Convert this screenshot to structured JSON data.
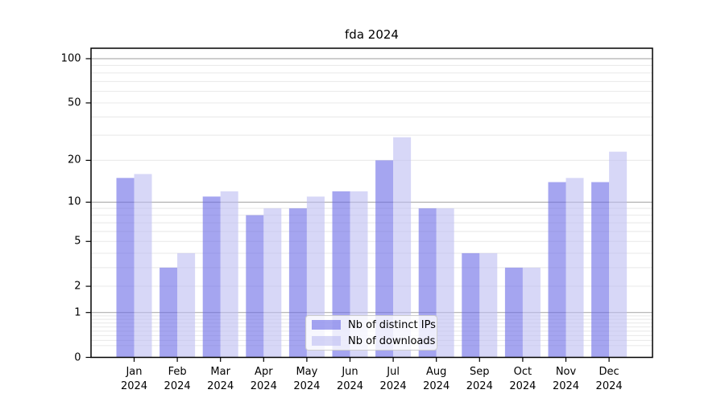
{
  "title": "fda 2024",
  "chart_data": {
    "type": "bar",
    "title": "fda 2024",
    "categories": [
      "Jan 2024",
      "Feb 2024",
      "Mar 2024",
      "Apr 2024",
      "May 2024",
      "Jun 2024",
      "Jul 2024",
      "Aug 2024",
      "Sep 2024",
      "Oct 2024",
      "Nov 2024",
      "Dec 2024"
    ],
    "series": [
      {
        "name": "Nb of distinct IPs",
        "color": "#6969e6",
        "values": [
          15,
          3,
          11,
          8,
          9,
          12,
          20,
          9,
          4,
          3,
          14,
          14
        ]
      },
      {
        "name": "Nb of downloads",
        "color": "#bcbcf2",
        "values": [
          16,
          4,
          12,
          9,
          11,
          12,
          29,
          9,
          4,
          3,
          15,
          23
        ]
      }
    ],
    "yscale": "log1p",
    "y_ticks": [
      100,
      50,
      20,
      10,
      5,
      2,
      1,
      0
    ],
    "ylim": [
      0,
      117
    ],
    "xlabel": "",
    "ylabel": "",
    "grid": true,
    "legend_position": "lower-center-inside",
    "bar_opacity": 0.6
  },
  "colors": {
    "bar_distinct_ips": "#6969e6",
    "bar_downloads": "#bcbcf2",
    "grid_major": "#b0b0b0",
    "grid_minor": "#e8e8e8",
    "axis": "#000000",
    "legend_border": "#cccccc"
  }
}
